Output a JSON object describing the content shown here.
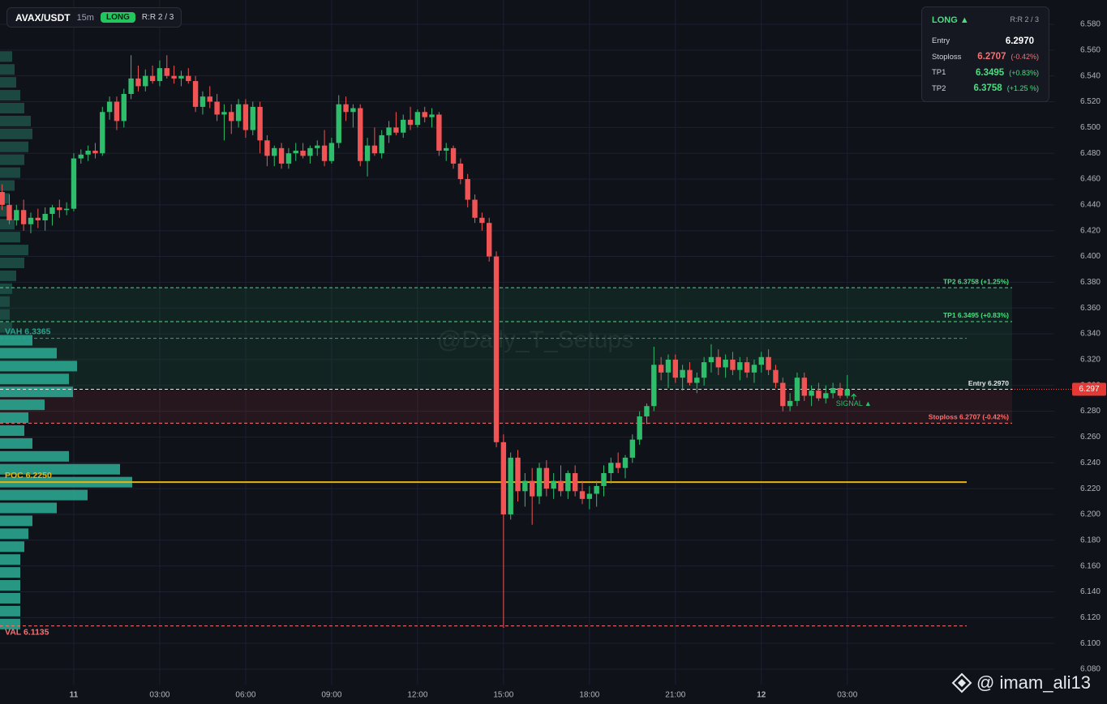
{
  "header": {
    "symbol": "AVAX/USDT",
    "interval": "15m",
    "badge": "LONG",
    "rr": "R:R 2 / 3"
  },
  "info_box": {
    "side": "LONG ▲",
    "rr": "R:R 2 / 3",
    "rows": [
      {
        "label": "Entry",
        "value": "6.2970",
        "color": "#ffffff"
      },
      {
        "label": "Stoploss",
        "value": "6.2707",
        "change": "(-0.42%)",
        "color": "#f87171"
      },
      {
        "label": "TP1",
        "value": "6.3495",
        "change": "(+0.83%)",
        "color": "#4ade80"
      },
      {
        "label": "TP2",
        "value": "6.3758",
        "change": "(+1.25 %)",
        "color": "#4ade80"
      }
    ]
  },
  "watermark": "@Daily_T_Setups",
  "signal": "SIGNAL ▲",
  "credit": "@ imam_ali13",
  "chart_data": {
    "type": "candlestick",
    "up_color": "#2ebd6b",
    "down_color": "#f05454",
    "grid": true,
    "xlim": [
      -0.3,
      146.9
    ],
    "ylim": [
      6.08,
      6.58
    ],
    "xticks": [
      {
        "value": 10,
        "label": "11"
      },
      {
        "value": 22,
        "label": "03:00"
      },
      {
        "value": 34,
        "label": "06:00"
      },
      {
        "value": 46,
        "label": "09:00"
      },
      {
        "value": 58,
        "label": "12:00"
      },
      {
        "value": 70,
        "label": "15:00"
      },
      {
        "value": 82,
        "label": "18:00"
      },
      {
        "value": 94,
        "label": "21:00"
      },
      {
        "value": 106,
        "label": "12"
      },
      {
        "value": 118,
        "label": "03:00"
      }
    ],
    "yticks": [
      {
        "value": 6.58,
        "label": "6.580"
      },
      {
        "value": 6.56,
        "label": "6.560"
      },
      {
        "value": 6.54,
        "label": "6.540"
      },
      {
        "value": 6.52,
        "label": "6.520"
      },
      {
        "value": 6.5,
        "label": "6.500"
      },
      {
        "value": 6.48,
        "label": "6.480"
      },
      {
        "value": 6.46,
        "label": "6.460"
      },
      {
        "value": 6.44,
        "label": "6.440"
      },
      {
        "value": 6.42,
        "label": "6.420"
      },
      {
        "value": 6.4,
        "label": "6.400"
      },
      {
        "value": 6.38,
        "label": "6.380"
      },
      {
        "value": 6.36,
        "label": "6.360"
      },
      {
        "value": 6.34,
        "label": "6.340"
      },
      {
        "value": 6.32,
        "label": "6.320"
      },
      {
        "value": 6.3,
        "label": "6.300"
      },
      {
        "value": 6.28,
        "label": "6.280"
      },
      {
        "value": 6.26,
        "label": "6.260"
      },
      {
        "value": 6.24,
        "label": "6.240"
      },
      {
        "value": 6.22,
        "label": "6.220"
      },
      {
        "value": 6.2,
        "label": "6.200"
      },
      {
        "value": 6.18,
        "label": "6.180"
      },
      {
        "value": 6.16,
        "label": "6.160"
      },
      {
        "value": 6.14,
        "label": "6.140"
      },
      {
        "value": 6.12,
        "label": "6.120"
      },
      {
        "value": 6.1,
        "label": "6.100"
      },
      {
        "value": 6.08,
        "label": "6.080"
      }
    ],
    "last_price": 6.297,
    "levels": [
      {
        "kind": "target",
        "value": 6.3758,
        "label": "TP2 6.3758 (+1.25%)",
        "color": "#4ade80"
      },
      {
        "kind": "target",
        "value": 6.3495,
        "label": "TP1 6.3495 (+0.83%)",
        "color": "#4ade80"
      },
      {
        "kind": "va",
        "value": 6.3365,
        "label": "VAH  6.3365",
        "color": "#2aa58f"
      },
      {
        "kind": "entry",
        "value": 6.297,
        "label": "Entry 6.2970",
        "color": "#e5e7eb"
      },
      {
        "kind": "stop",
        "value": 6.2707,
        "label": "Stoploss 6.2707 (-0.42%)",
        "color": "#f87171"
      },
      {
        "kind": "poc",
        "value": 6.225,
        "label": "POC  6.2250",
        "color": "#eab308"
      },
      {
        "kind": "va",
        "value": 6.1135,
        "label": "VAL  6.1135",
        "color": "#f87171"
      }
    ],
    "profile": {
      "color_in": "#2aa58f",
      "color_out": "#1e4f47",
      "prices": [
        6.555,
        6.545,
        6.535,
        6.525,
        6.515,
        6.505,
        6.495,
        6.485,
        6.475,
        6.465,
        6.455,
        6.445,
        6.435,
        6.425,
        6.415,
        6.405,
        6.395,
        6.385,
        6.375,
        6.365,
        6.355,
        6.345,
        6.335,
        6.325,
        6.315,
        6.305,
        6.295,
        6.285,
        6.275,
        6.265,
        6.255,
        6.245,
        6.235,
        6.225,
        6.215,
        6.205,
        6.195,
        6.185,
        6.175,
        6.165,
        6.155,
        6.145,
        6.135,
        6.125,
        6.115
      ],
      "volumes": [
        15,
        18,
        20,
        25,
        30,
        38,
        40,
        35,
        30,
        25,
        18,
        12,
        10,
        18,
        25,
        35,
        30,
        20,
        15,
        12,
        12,
        15,
        40,
        70,
        95,
        85,
        90,
        55,
        35,
        30,
        40,
        85,
        148,
        163,
        108,
        70,
        40,
        35,
        30,
        25,
        25,
        25,
        25,
        25,
        25
      ]
    },
    "candles": [
      [
        6.45,
        6.456,
        6.436,
        6.44
      ],
      [
        6.44,
        6.448,
        6.425,
        6.428
      ],
      [
        6.428,
        6.44,
        6.424,
        6.436
      ],
      [
        6.436,
        6.444,
        6.42,
        6.425
      ],
      [
        6.425,
        6.434,
        6.418,
        6.43
      ],
      [
        6.43,
        6.437,
        6.422,
        6.428
      ],
      [
        6.428,
        6.438,
        6.42,
        6.433
      ],
      [
        6.433,
        6.44,
        6.424,
        6.438
      ],
      [
        6.438,
        6.444,
        6.43,
        6.436
      ],
      [
        6.436,
        6.442,
        6.432,
        6.437
      ],
      [
        6.437,
        6.48,
        6.435,
        6.476
      ],
      [
        6.476,
        6.483,
        6.472,
        6.479
      ],
      [
        6.479,
        6.486,
        6.474,
        6.482
      ],
      [
        6.482,
        6.488,
        6.476,
        6.48
      ],
      [
        6.48,
        6.516,
        6.478,
        6.512
      ],
      [
        6.512,
        6.524,
        6.506,
        6.52
      ],
      [
        6.52,
        6.524,
        6.498,
        6.505
      ],
      [
        6.505,
        6.53,
        6.5,
        6.526
      ],
      [
        6.526,
        6.556,
        6.522,
        6.538
      ],
      [
        6.538,
        6.548,
        6.528,
        6.532
      ],
      [
        6.532,
        6.545,
        6.528,
        6.54
      ],
      [
        6.54,
        6.548,
        6.534,
        6.536
      ],
      [
        6.536,
        6.552,
        6.532,
        6.546
      ],
      [
        6.546,
        6.556,
        6.538,
        6.54
      ],
      [
        6.54,
        6.548,
        6.534,
        6.538
      ],
      [
        6.538,
        6.544,
        6.532,
        6.54
      ],
      [
        6.54,
        6.546,
        6.534,
        6.536
      ],
      [
        6.536,
        6.54,
        6.512,
        6.516
      ],
      [
        6.516,
        6.528,
        6.51,
        6.524
      ],
      [
        6.524,
        6.532,
        6.515,
        6.52
      ],
      [
        6.52,
        6.526,
        6.505,
        6.51
      ],
      [
        6.51,
        6.518,
        6.49,
        6.512
      ],
      [
        6.512,
        6.518,
        6.495,
        6.505
      ],
      [
        6.505,
        6.522,
        6.5,
        6.518
      ],
      [
        6.518,
        6.522,
        6.492,
        6.498
      ],
      [
        6.498,
        6.52,
        6.494,
        6.516
      ],
      [
        6.516,
        6.52,
        6.48,
        6.49
      ],
      [
        6.49,
        6.494,
        6.47,
        6.478
      ],
      [
        6.478,
        6.486,
        6.47,
        6.484
      ],
      [
        6.484,
        6.488,
        6.468,
        6.472
      ],
      [
        6.472,
        6.484,
        6.468,
        6.48
      ],
      [
        6.48,
        6.488,
        6.474,
        6.482
      ],
      [
        6.482,
        6.488,
        6.476,
        6.478
      ],
      [
        6.478,
        6.486,
        6.472,
        6.484
      ],
      [
        6.484,
        6.49,
        6.478,
        6.486
      ],
      [
        6.486,
        6.498,
        6.47,
        6.474
      ],
      [
        6.474,
        6.492,
        6.472,
        6.488
      ],
      [
        6.488,
        6.525,
        6.484,
        6.518
      ],
      [
        6.518,
        6.524,
        6.505,
        6.512
      ],
      [
        6.512,
        6.518,
        6.5,
        6.515
      ],
      [
        6.515,
        6.518,
        6.47,
        6.474
      ],
      [
        6.474,
        6.492,
        6.462,
        6.486
      ],
      [
        6.486,
        6.5,
        6.478,
        6.48
      ],
      [
        6.48,
        6.498,
        6.476,
        6.494
      ],
      [
        6.494,
        6.505,
        6.488,
        6.5
      ],
      [
        6.5,
        6.512,
        6.494,
        6.496
      ],
      [
        6.496,
        6.51,
        6.492,
        6.506
      ],
      [
        6.506,
        6.516,
        6.498,
        6.502
      ],
      [
        6.502,
        6.514,
        6.5,
        6.512
      ],
      [
        6.512,
        6.516,
        6.504,
        6.508
      ],
      [
        6.508,
        6.515,
        6.5,
        6.51
      ],
      [
        6.51,
        6.512,
        6.478,
        6.482
      ],
      [
        6.482,
        6.488,
        6.474,
        6.484
      ],
      [
        6.484,
        6.486,
        6.468,
        6.472
      ],
      [
        6.472,
        6.476,
        6.456,
        6.46
      ],
      [
        6.46,
        6.464,
        6.438,
        6.444
      ],
      [
        6.444,
        6.448,
        6.426,
        6.43
      ],
      [
        6.43,
        6.434,
        6.42,
        6.426
      ],
      [
        6.426,
        6.43,
        6.396,
        6.4
      ],
      [
        6.4,
        6.404,
        6.252,
        6.256
      ],
      [
        6.256,
        6.262,
        6.112,
        6.2
      ],
      [
        6.2,
        6.248,
        6.196,
        6.244
      ],
      [
        6.244,
        6.25,
        6.21,
        6.218
      ],
      [
        6.218,
        6.232,
        6.206,
        6.226
      ],
      [
        6.226,
        6.236,
        6.192,
        6.214
      ],
      [
        6.214,
        6.24,
        6.208,
        6.236
      ],
      [
        6.236,
        6.242,
        6.214,
        6.22
      ],
      [
        6.22,
        6.232,
        6.212,
        6.226
      ],
      [
        6.226,
        6.238,
        6.214,
        6.218
      ],
      [
        6.218,
        6.234,
        6.212,
        6.232
      ],
      [
        6.232,
        6.238,
        6.214,
        6.218
      ],
      [
        6.218,
        6.226,
        6.208,
        6.212
      ],
      [
        6.212,
        6.222,
        6.204,
        6.216
      ],
      [
        6.216,
        6.226,
        6.206,
        6.222
      ],
      [
        6.222,
        6.238,
        6.214,
        6.232
      ],
      [
        6.232,
        6.244,
        6.224,
        6.24
      ],
      [
        6.24,
        6.248,
        6.232,
        6.236
      ],
      [
        6.236,
        6.246,
        6.228,
        6.244
      ],
      [
        6.244,
        6.262,
        6.24,
        6.258
      ],
      [
        6.258,
        6.28,
        6.254,
        6.276
      ],
      [
        6.276,
        6.286,
        6.27,
        6.284
      ],
      [
        6.284,
        6.33,
        6.28,
        6.316
      ],
      [
        6.316,
        6.322,
        6.304,
        6.31
      ],
      [
        6.31,
        6.324,
        6.298,
        6.32
      ],
      [
        6.32,
        6.324,
        6.302,
        6.306
      ],
      [
        6.306,
        6.316,
        6.296,
        6.312
      ],
      [
        6.312,
        6.318,
        6.3,
        6.302
      ],
      [
        6.302,
        6.31,
        6.294,
        6.306
      ],
      [
        6.306,
        6.322,
        6.3,
        6.318
      ],
      [
        6.318,
        6.332,
        6.31,
        6.322
      ],
      [
        6.322,
        6.328,
        6.308,
        6.314
      ],
      [
        6.314,
        6.324,
        6.306,
        6.32
      ],
      [
        6.32,
        6.326,
        6.308,
        6.312
      ],
      [
        6.312,
        6.322,
        6.304,
        6.318
      ],
      [
        6.318,
        6.322,
        6.306,
        6.31
      ],
      [
        6.31,
        6.32,
        6.302,
        6.316
      ],
      [
        6.316,
        6.326,
        6.31,
        6.322
      ],
      [
        6.322,
        6.328,
        6.308,
        6.312
      ],
      [
        6.312,
        6.316,
        6.298,
        6.302
      ],
      [
        6.302,
        6.306,
        6.28,
        6.284
      ],
      [
        6.284,
        6.294,
        6.28,
        6.288
      ],
      [
        6.288,
        6.31,
        6.284,
        6.306
      ],
      [
        6.306,
        6.31,
        6.288,
        6.292
      ],
      [
        6.292,
        6.3,
        6.284,
        6.296
      ],
      [
        6.296,
        6.302,
        6.288,
        6.29
      ],
      [
        6.29,
        6.3,
        6.286,
        6.294
      ],
      [
        6.294,
        6.302,
        6.29,
        6.298
      ],
      [
        6.298,
        6.302,
        6.29,
        6.292
      ],
      [
        6.292,
        6.308,
        6.29,
        6.297
      ]
    ]
  }
}
